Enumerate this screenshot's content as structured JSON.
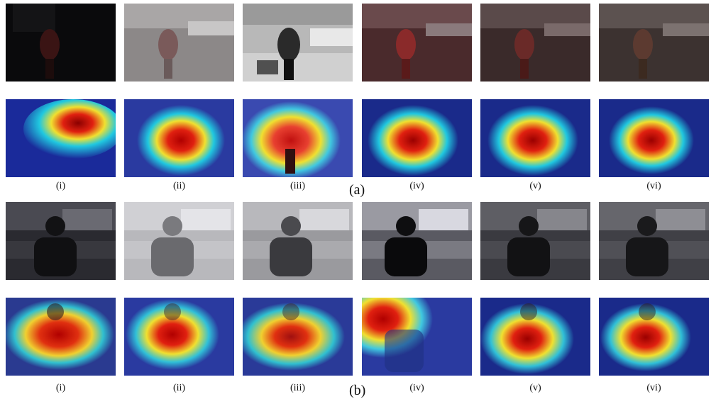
{
  "figure": {
    "group_a": {
      "label": "(a)",
      "scene": "dark-lab-person-walking",
      "sub_labels": [
        "(i)",
        "(ii)",
        "(iii)",
        "(iv)",
        "(v)",
        "(vi)"
      ]
    },
    "group_b": {
      "label": "(b)",
      "scene": "lab-person-seated-at-desk",
      "sub_labels": [
        "(i)",
        "(ii)",
        "(iii)",
        "(iv)",
        "(v)",
        "(vi)"
      ]
    }
  },
  "colors": {
    "heat_low": "#1a2a9a",
    "heat_mid_low": "#20c8e0",
    "heat_mid": "#f0e030",
    "heat_high": "#e02010",
    "heat_peak": "#8a0000"
  }
}
